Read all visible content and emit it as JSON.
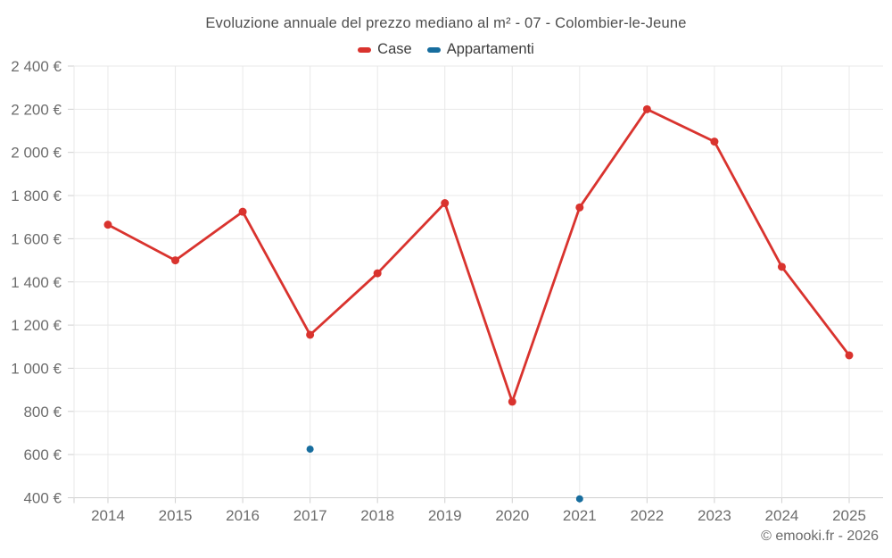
{
  "chart_data": {
    "type": "line",
    "title": "Evoluzione annuale del prezzo mediano al m² - 07 - Colombier-le-Jeune",
    "xlabel": "",
    "ylabel": "",
    "categories": [
      "2014",
      "2015",
      "2016",
      "2017",
      "2018",
      "2019",
      "2020",
      "2021",
      "2022",
      "2023",
      "2024",
      "2025"
    ],
    "series": [
      {
        "name": "Case",
        "color": "#d9332e",
        "marker_radius": 4.5,
        "values": [
          1665,
          1500,
          1725,
          1155,
          1440,
          1765,
          845,
          1745,
          2200,
          2050,
          1470,
          1060
        ]
      },
      {
        "name": "Appartamenti",
        "color": "#176d9e",
        "marker_radius": 4,
        "values": [
          null,
          null,
          null,
          625,
          null,
          null,
          null,
          395,
          null,
          null,
          null,
          null
        ]
      }
    ],
    "ylim": [
      400,
      2400
    ],
    "y_tick_values": [
      400,
      600,
      800,
      1000,
      1200,
      1400,
      1600,
      1800,
      2000,
      2200,
      2400
    ],
    "y_tick_labels": [
      "400 €",
      "600 €",
      "800 €",
      "1 000 €",
      "1 200 €",
      "1 400 €",
      "1 600 €",
      "1 800 €",
      "2 000 €",
      "2 200 €",
      "2 400 €"
    ],
    "grid": true,
    "legend_position": "top"
  },
  "footer": {
    "copyright": "© emooki.fr - 2026"
  }
}
